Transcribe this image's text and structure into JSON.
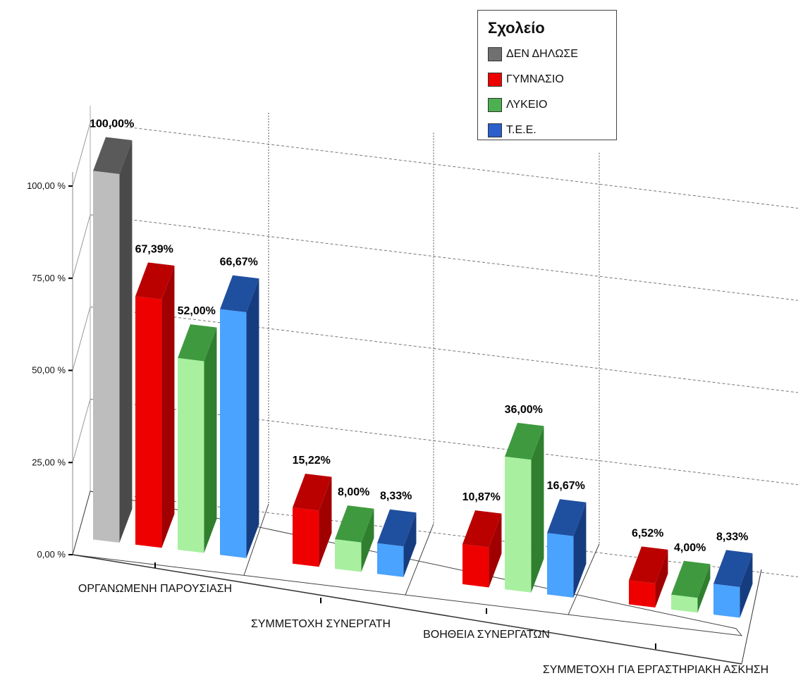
{
  "chart_data": {
    "type": "bar",
    "title": "",
    "xlabel": "",
    "ylabel": "",
    "ylim": [
      0,
      100
    ],
    "yticks": [
      "0,00 %",
      "25,00 %",
      "50,00 %",
      "75,00 %",
      "100,00 %"
    ],
    "categories": [
      "ΟΡΓΑΝΩΜΕΝΗ ΠΑΡΟΥΣΙΑΣΗ",
      "ΣΥΜΜΕΤΟΧΗ ΣΥΝΕΡΓΑΤΗ",
      "ΒΟΗΘΕΙΑ ΣΥΝΕΡΓΑΤΩΝ",
      "ΣΥΜΜΕΤΟΧΗ ΓΙΑ ΕΡΓΑΣΤΗΡΙΑΚΗ ΑΣΚΗΣΗ"
    ],
    "legend_title": "Σχολείο",
    "legend_position": "top-right",
    "grid": true,
    "series": [
      {
        "name": "ΔΕΝ ΔΗΛΩΣΕ",
        "color": "#bdbdbd",
        "top_color": "#5a5a5a",
        "side_color": "#4a4a4a",
        "legend_color": "#707070",
        "values": [
          100.0,
          null,
          null,
          null
        ],
        "labels": [
          "100,00%",
          "",
          "",
          ""
        ]
      },
      {
        "name": "ΓΥΜΝΑΣΙΟ",
        "color": "#ee0000",
        "top_color": "#bb0000",
        "side_color": "#a00000",
        "legend_color": "#ee0000",
        "values": [
          67.39,
          15.22,
          10.87,
          6.52
        ],
        "labels": [
          "67,39%",
          "15,22%",
          "10,87%",
          "6,52%"
        ]
      },
      {
        "name": "ΛΥΚΕΙΟ",
        "color": "#a8f0a0",
        "top_color": "#3f9a3f",
        "side_color": "#2f7f2f",
        "legend_color": "#4caf50",
        "values": [
          52.0,
          8.0,
          36.0,
          4.0
        ],
        "labels": [
          "52,00%",
          "8,00%",
          "36,00%",
          "4,00%"
        ]
      },
      {
        "name": "Τ.Ε.Ε.",
        "color": "#4aa3ff",
        "top_color": "#1f4f9f",
        "side_color": "#163c80",
        "legend_color": "#2a5fcc",
        "values": [
          66.67,
          8.33,
          16.67,
          8.33
        ],
        "labels": [
          "66,67%",
          "8,33%",
          "16,67%",
          "8,33%"
        ]
      }
    ]
  }
}
